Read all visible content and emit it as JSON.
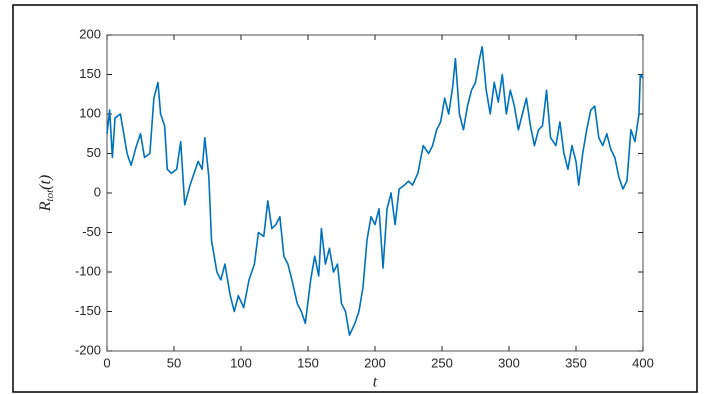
{
  "chart_data": {
    "type": "line",
    "xlabel": "t",
    "ylabel": [
      "R",
      "tot",
      "(t)"
    ],
    "xlim": [
      0,
      400
    ],
    "xticks": [
      0,
      50,
      100,
      150,
      200,
      250,
      300,
      350,
      400
    ],
    "ylim": [
      -200,
      200
    ],
    "yticks": [
      -200,
      -150,
      -100,
      -50,
      0,
      50,
      100,
      150,
      200
    ],
    "series": [
      {
        "color": "#0072bd",
        "x": [
          0,
          2,
          4,
          6,
          10,
          15,
          18,
          22,
          25,
          28,
          32,
          35,
          38,
          40,
          43,
          45,
          48,
          52,
          55,
          58,
          62,
          65,
          68,
          71,
          73,
          76,
          78,
          82,
          85,
          88,
          92,
          95,
          98,
          102,
          106,
          110,
          113,
          117,
          120,
          123,
          126,
          129,
          132,
          135,
          138,
          142,
          145,
          148,
          152,
          155,
          158,
          160,
          163,
          166,
          169,
          172,
          175,
          178,
          181,
          185,
          188,
          191,
          194,
          197,
          200,
          203,
          206,
          209,
          212,
          215,
          218,
          222,
          225,
          228,
          232,
          236,
          240,
          243,
          246,
          249,
          252,
          255,
          258,
          260,
          263,
          266,
          269,
          272,
          275,
          278,
          280,
          283,
          286,
          289,
          292,
          295,
          298,
          301,
          304,
          307,
          310,
          313,
          316,
          319,
          322,
          325,
          328,
          331,
          335,
          338,
          341,
          344,
          347,
          350,
          352,
          355,
          358,
          361,
          364,
          367,
          370,
          373,
          376,
          379,
          382,
          385,
          388,
          391,
          394,
          397,
          398,
          400
        ],
        "values": [
          75,
          105,
          45,
          95,
          100,
          50,
          35,
          60,
          75,
          45,
          50,
          120,
          140,
          100,
          85,
          30,
          25,
          30,
          65,
          -15,
          10,
          25,
          40,
          30,
          70,
          20,
          -60,
          -100,
          -110,
          -90,
          -130,
          -150,
          -130,
          -145,
          -110,
          -90,
          -50,
          -55,
          -10,
          -45,
          -40,
          -30,
          -80,
          -90,
          -110,
          -140,
          -150,
          -165,
          -110,
          -80,
          -105,
          -45,
          -90,
          -70,
          -100,
          -90,
          -140,
          -150,
          -180,
          -165,
          -150,
          -120,
          -60,
          -30,
          -40,
          -20,
          -95,
          -20,
          0,
          -40,
          5,
          10,
          15,
          10,
          25,
          60,
          50,
          60,
          80,
          90,
          120,
          100,
          135,
          170,
          100,
          80,
          110,
          130,
          140,
          170,
          185,
          130,
          100,
          140,
          115,
          150,
          100,
          130,
          110,
          80,
          100,
          120,
          85,
          60,
          80,
          85,
          130,
          70,
          60,
          90,
          50,
          30,
          60,
          40,
          10,
          50,
          80,
          105,
          110,
          70,
          60,
          75,
          55,
          45,
          20,
          5,
          15,
          80,
          65,
          100,
          150,
          145
        ]
      }
    ]
  }
}
